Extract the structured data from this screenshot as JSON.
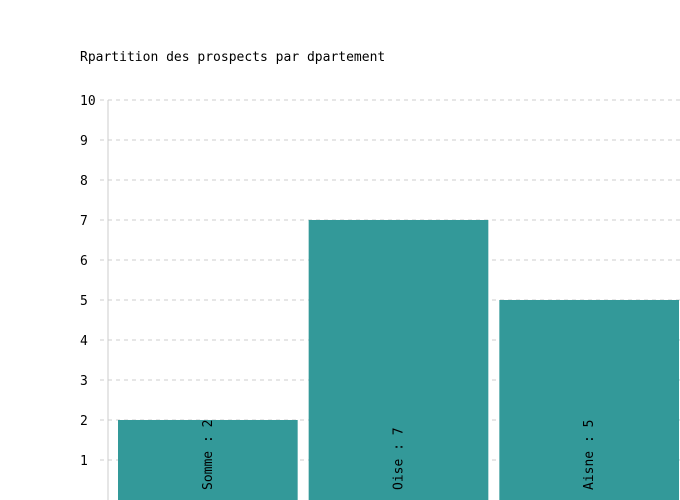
{
  "chart_data": {
    "type": "bar",
    "title": "Rpartition des prospects par dpartement",
    "categories": [
      "Somme",
      "Oise",
      "Aisne"
    ],
    "values": [
      2,
      7,
      5
    ],
    "bar_labels": [
      "Somme : 2",
      "Oise : 7",
      "Aisne : 5"
    ],
    "ylim": [
      0,
      10
    ],
    "yticks": [
      "1",
      "2",
      "3",
      "4",
      "5",
      "6",
      "7",
      "8",
      "9",
      "10"
    ],
    "grid": true,
    "xlabel": "",
    "ylabel": "",
    "colors": {
      "bar": "#339999",
      "grid": "#cccccc",
      "axis": "#cccccc"
    }
  }
}
